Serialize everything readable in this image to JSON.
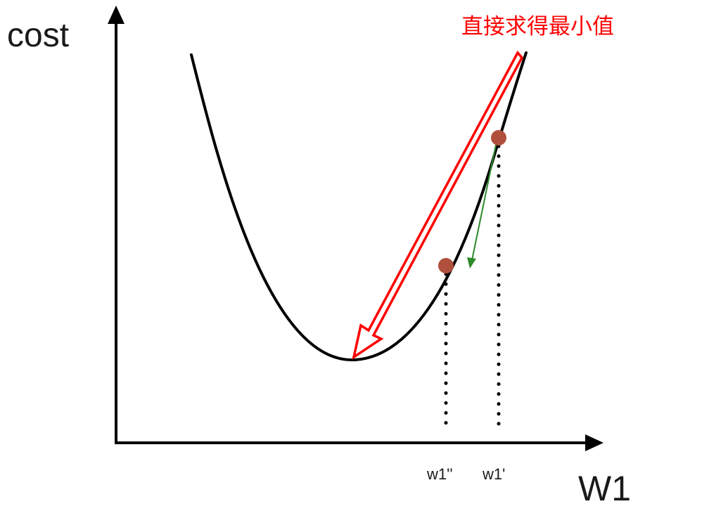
{
  "labels": {
    "y_axis": "cost",
    "x_axis": "W1",
    "annotation": "直接求得最小值",
    "tick_w1_prime": "w1'",
    "tick_w1_double_prime": "w1''"
  },
  "colors": {
    "curve": "#000000",
    "axes": "#000000",
    "red_arrow": "#ff0000",
    "green_arrow": "#2e8b2e",
    "points": "#b0503c",
    "annotation_text": "#ff0000"
  }
}
